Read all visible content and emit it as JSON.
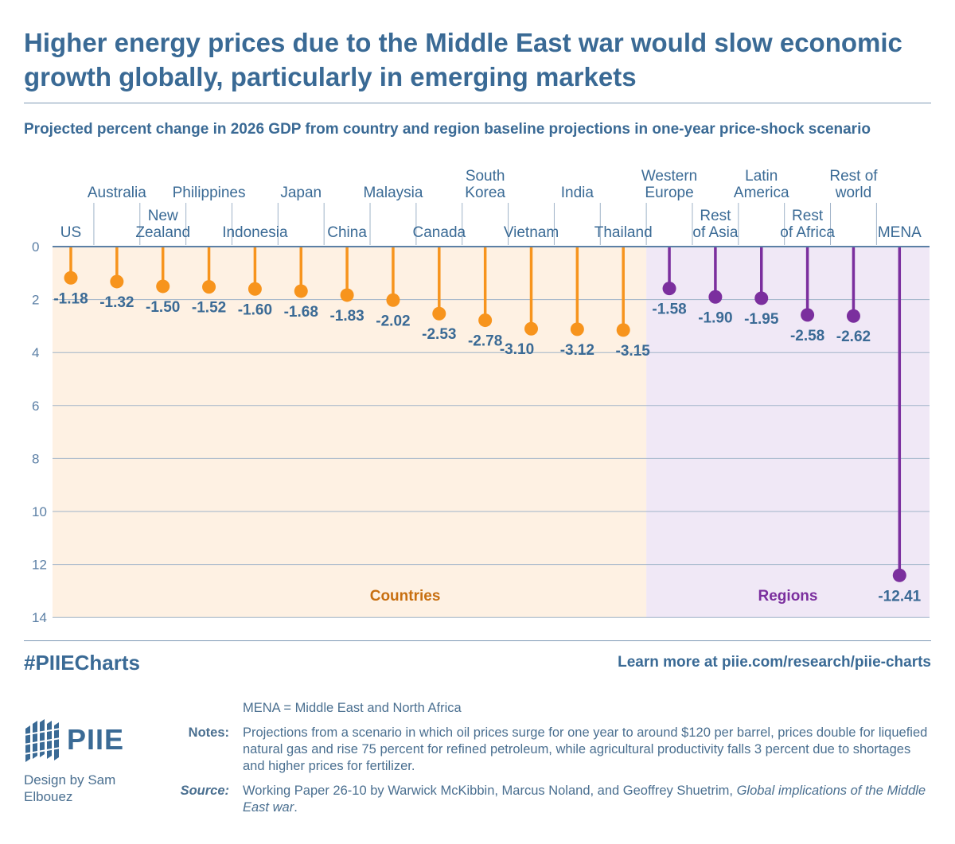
{
  "title": "Higher energy prices due to the Middle East war would slow economic growth globally, particularly in emerging markets",
  "subtitle": "Projected percent change in 2026 GDP from country and region baseline projections in one-year price-shock scenario",
  "chart_data": {
    "type": "lollipop",
    "y_axis": {
      "min": 0,
      "max": 14,
      "ticks": [
        0,
        2,
        4,
        6,
        8,
        10,
        12,
        14
      ],
      "direction": "down"
    },
    "grid": true,
    "groups": [
      {
        "name": "Countries",
        "color": "#f7941d",
        "background": "#fef1e3"
      },
      {
        "name": "Regions",
        "color": "#7b2f9e",
        "background": "#f0e8f6"
      }
    ],
    "points": [
      {
        "label": "US",
        "value": -1.18,
        "group": "Countries"
      },
      {
        "label": "Australia",
        "value": -1.32,
        "group": "Countries"
      },
      {
        "label": "New Zealand",
        "value": -1.5,
        "group": "Countries"
      },
      {
        "label": "Philippines",
        "value": -1.52,
        "group": "Countries"
      },
      {
        "label": "Indonesia",
        "value": -1.6,
        "group": "Countries"
      },
      {
        "label": "Japan",
        "value": -1.68,
        "group": "Countries"
      },
      {
        "label": "China",
        "value": -1.83,
        "group": "Countries"
      },
      {
        "label": "Malaysia",
        "value": -2.02,
        "group": "Countries"
      },
      {
        "label": "Canada",
        "value": -2.53,
        "group": "Countries"
      },
      {
        "label": "South Korea",
        "value": -2.78,
        "group": "Countries"
      },
      {
        "label": "Vietnam",
        "value": -3.1,
        "group": "Countries"
      },
      {
        "label": "India",
        "value": -3.12,
        "group": "Countries"
      },
      {
        "label": "Thailand",
        "value": -3.15,
        "group": "Countries"
      },
      {
        "label": "Western Europe",
        "value": -1.58,
        "group": "Regions"
      },
      {
        "label": "Rest of Asia",
        "value": -1.9,
        "group": "Regions"
      },
      {
        "label": "Latin America",
        "value": -1.95,
        "group": "Regions"
      },
      {
        "label": "Rest of Africa",
        "value": -2.58,
        "group": "Regions"
      },
      {
        "label": "Rest of world",
        "value": -2.62,
        "group": "Regions"
      },
      {
        "label": "MENA",
        "value": -12.41,
        "group": "Regions"
      }
    ]
  },
  "footer": {
    "hashtag": "#PIIECharts",
    "learn_more": "Learn more at piie.com/research/piie-charts",
    "logo_text": "PIIE",
    "design_credit": "Design by Sam Elbouez",
    "abbrev": "MENA = Middle East and North Africa",
    "notes_label": "Notes:",
    "notes": "Projections from a scenario in which oil prices surge for one year to around $120 per barrel, prices double for liquefied natural gas and rise 75 percent for refined petroleum, while agricultural productivity falls 3 percent due to shortages and higher prices for fertilizer.",
    "source_label": "Source:",
    "source_text": "Working Paper 26-10 by Warwick McKibbin, Marcus Noland, and Geoffrey Shuetrim,",
    "source_title": "Global implications of the Middle East war",
    "source_end": "."
  },
  "colors": {
    "text": "#3a6a95",
    "axis": "#5b7fa5",
    "grid": "#9fb3c8"
  }
}
